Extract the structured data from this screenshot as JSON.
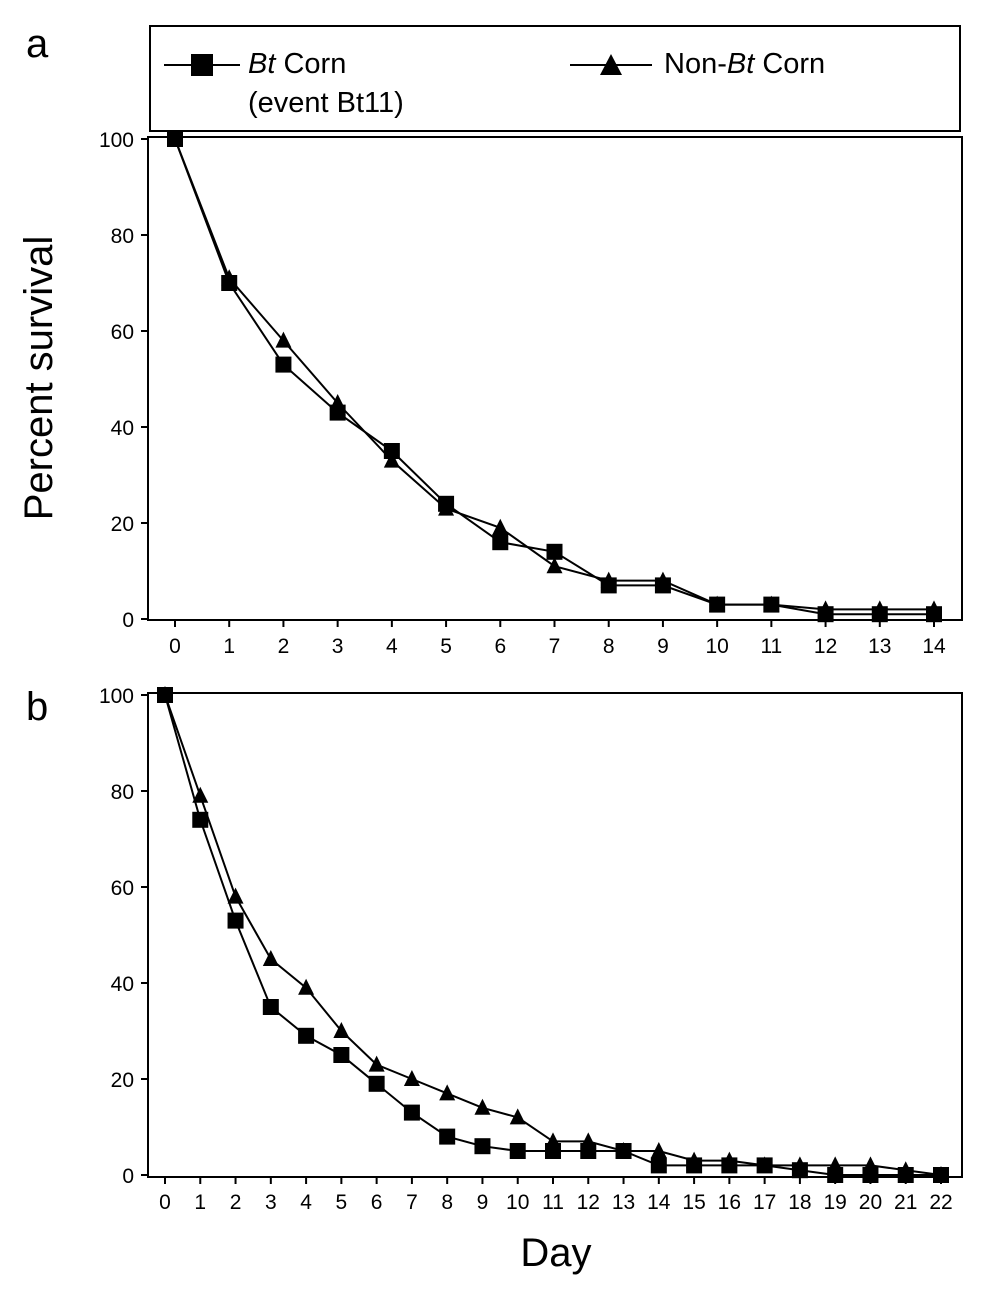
{
  "legend": {
    "bt": {
      "line1_italic": "Bt",
      "line1_rest": " Corn",
      "line2": "(event Bt11)"
    },
    "nonbt": {
      "prefix": "Non-",
      "italic": "Bt",
      "suffix": " Corn"
    }
  },
  "ylabel": "Percent survival",
  "xlabel": "Day",
  "chart_data": [
    {
      "type": "line",
      "panel": "a",
      "xlabel": "Day",
      "ylabel": "Percent survival",
      "x": [
        0,
        1,
        2,
        3,
        4,
        5,
        6,
        7,
        8,
        9,
        10,
        11,
        12,
        13,
        14
      ],
      "xlim": [
        0,
        14
      ],
      "ylim": [
        0,
        100
      ],
      "yticks": [
        0,
        20,
        40,
        60,
        80,
        100
      ],
      "grid": false,
      "legend_position": "top",
      "series": [
        {
          "name": "Bt Corn (event Bt11)",
          "marker": "square",
          "values": [
            100,
            70,
            53,
            43,
            35,
            24,
            16,
            14,
            7,
            7,
            3,
            3,
            1,
            1,
            1
          ]
        },
        {
          "name": "Non-Bt Corn",
          "marker": "triangle",
          "values": [
            100,
            71,
            58,
            45,
            33,
            23,
            19,
            11,
            8,
            8,
            3,
            3,
            2,
            2,
            2
          ]
        }
      ]
    },
    {
      "type": "line",
      "panel": "b",
      "xlabel": "Day",
      "ylabel": "Percent survival",
      "x": [
        0,
        1,
        2,
        3,
        4,
        5,
        6,
        7,
        8,
        9,
        10,
        11,
        12,
        13,
        14,
        15,
        16,
        17,
        18,
        19,
        20,
        21,
        22
      ],
      "xlim": [
        0,
        22
      ],
      "ylim": [
        0,
        100
      ],
      "yticks": [
        0,
        20,
        40,
        60,
        80,
        100
      ],
      "grid": false,
      "series": [
        {
          "name": "Bt Corn (event Bt11)",
          "marker": "square",
          "values": [
            100,
            74,
            53,
            35,
            29,
            25,
            19,
            13,
            8,
            6,
            5,
            5,
            5,
            5,
            2,
            2,
            2,
            2,
            1,
            0,
            0,
            0,
            0
          ]
        },
        {
          "name": "Non-Bt Corn",
          "marker": "triangle",
          "values": [
            100,
            79,
            58,
            45,
            39,
            30,
            23,
            20,
            17,
            14,
            12,
            7,
            7,
            5,
            5,
            3,
            3,
            2,
            2,
            2,
            2,
            1,
            0
          ]
        }
      ]
    }
  ]
}
